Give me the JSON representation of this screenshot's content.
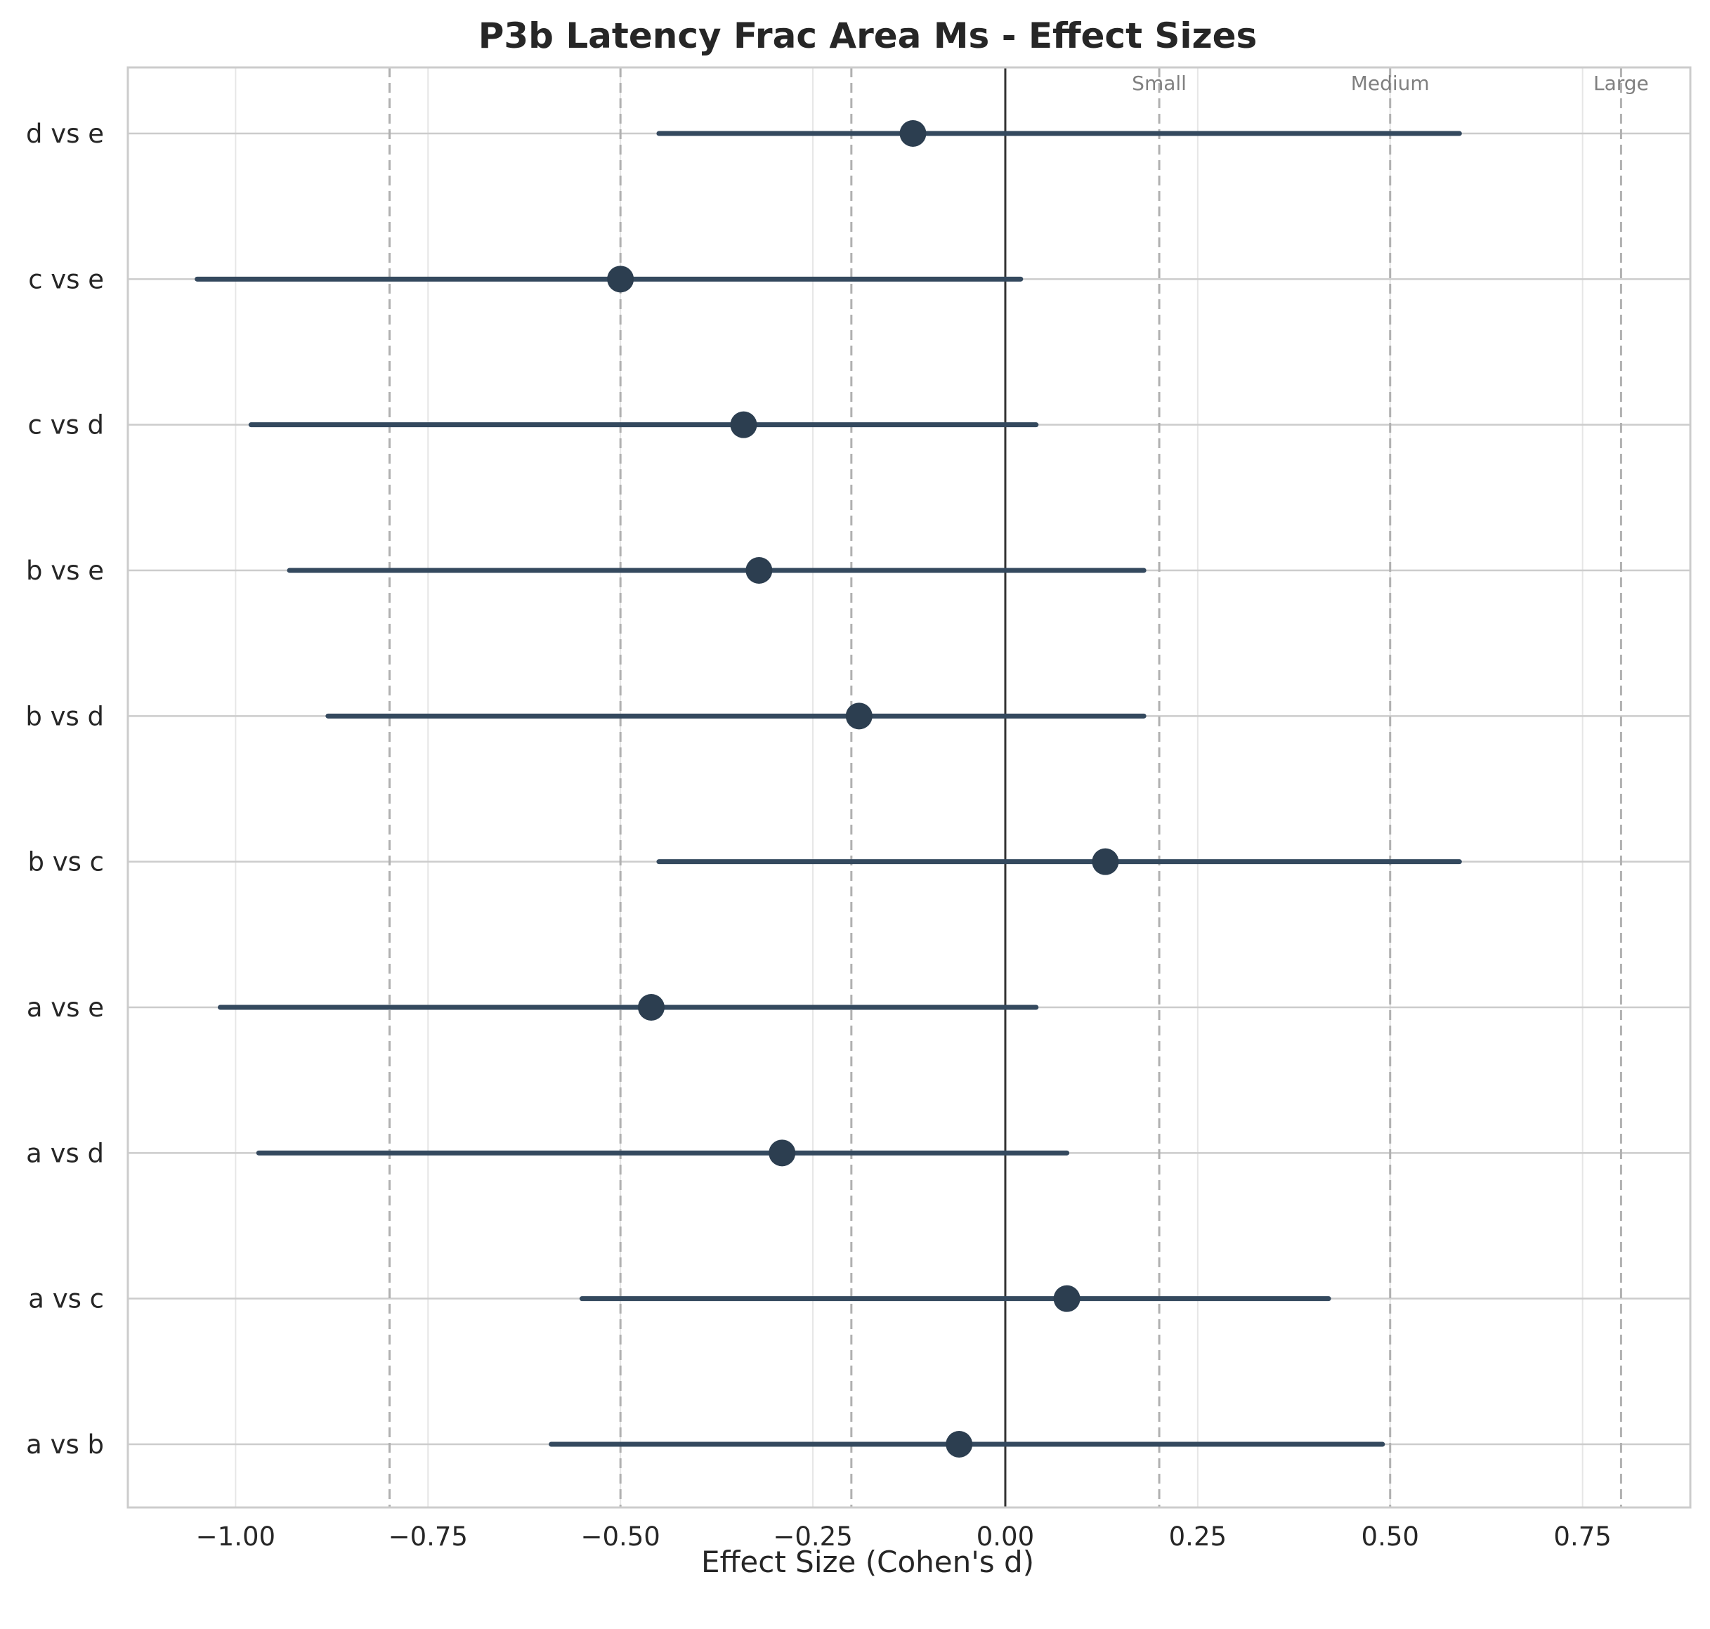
{
  "chart_data": {
    "type": "forest",
    "title": "P3b Latency Frac Area Ms - Effect Sizes",
    "xlabel": "Effect Size (Cohen's d)",
    "ylabel": "",
    "xlim": [
      -1.14,
      0.89
    ],
    "xticks": [
      -1.0,
      -0.75,
      -0.5,
      -0.25,
      0.0,
      0.25,
      0.5,
      0.75
    ],
    "xtick_labels": [
      "−1.00",
      "−0.75",
      "−0.50",
      "−0.25",
      "0.00",
      "0.25",
      "0.50",
      "0.75"
    ],
    "grid": true,
    "zero_line": 0.0,
    "reference_lines": [
      {
        "value": -0.8,
        "label": ""
      },
      {
        "value": -0.5,
        "label": ""
      },
      {
        "value": -0.2,
        "label": ""
      },
      {
        "value": 0.2,
        "label": "Small"
      },
      {
        "value": 0.5,
        "label": "Medium"
      },
      {
        "value": 0.8,
        "label": "Large"
      }
    ],
    "colors": {
      "marker": "#2c3e50",
      "interval": "#34495e",
      "grid": "#e6e6e6",
      "reference": "#b0b0b0",
      "zero": "#333333",
      "frame": "#cccccc"
    },
    "comparisons": [
      {
        "label": "a vs b",
        "d": -0.06,
        "ci_low": -0.59,
        "ci_high": 0.49
      },
      {
        "label": "a vs c",
        "d": 0.08,
        "ci_low": -0.55,
        "ci_high": 0.42
      },
      {
        "label": "a vs d",
        "d": -0.29,
        "ci_low": -0.97,
        "ci_high": 0.08
      },
      {
        "label": "a vs e",
        "d": -0.46,
        "ci_low": -1.02,
        "ci_high": 0.04
      },
      {
        "label": "b vs c",
        "d": 0.13,
        "ci_low": -0.45,
        "ci_high": 0.59
      },
      {
        "label": "b vs d",
        "d": -0.19,
        "ci_low": -0.88,
        "ci_high": 0.18
      },
      {
        "label": "b vs e",
        "d": -0.32,
        "ci_low": -0.93,
        "ci_high": 0.18
      },
      {
        "label": "c vs d",
        "d": -0.34,
        "ci_low": -0.98,
        "ci_high": 0.04
      },
      {
        "label": "c vs e",
        "d": -0.5,
        "ci_low": -1.05,
        "ci_high": 0.02
      },
      {
        "label": "d vs e",
        "d": -0.12,
        "ci_low": -0.45,
        "ci_high": 0.59
      }
    ]
  }
}
